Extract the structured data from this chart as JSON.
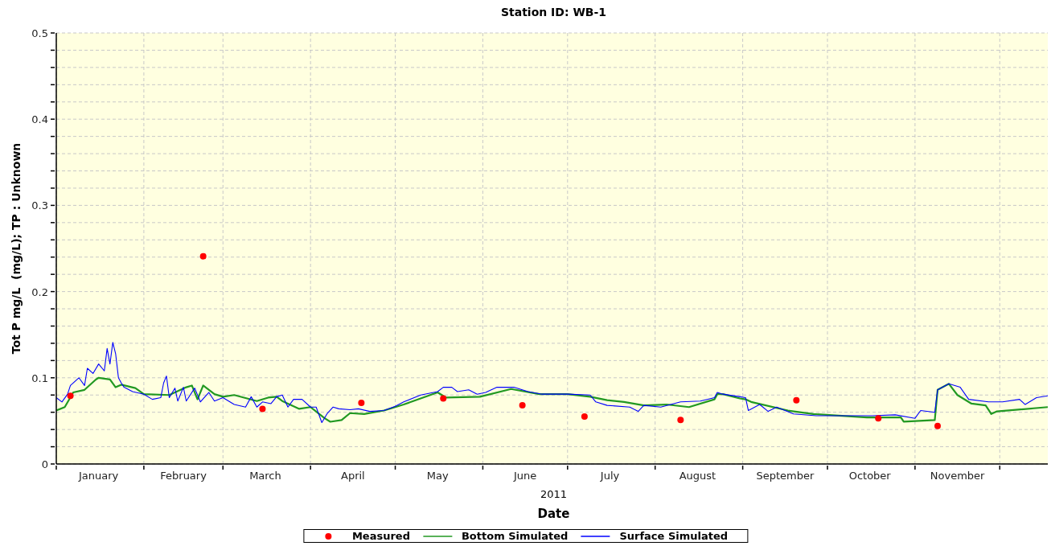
{
  "chart_data": {
    "type": "line",
    "title": "Station ID: WB-1",
    "xlabel": "Date",
    "ylabel": "Tot P mg/L  (mg/L); TP : Unknown",
    "annotations": [
      "2011"
    ],
    "xlim": [
      "2011-01-01",
      "2011-12-18"
    ],
    "xticks": [
      {
        "value": "2011-01-01",
        "label": null
      },
      {
        "value": "2011-01-16",
        "label": "January"
      },
      {
        "value": "2011-02-01",
        "label": null
      },
      {
        "value": "2011-02-15",
        "label": "February"
      },
      {
        "value": "2011-03-01",
        "label": null
      },
      {
        "value": "2011-03-16",
        "label": "March"
      },
      {
        "value": "2011-04-01",
        "label": null
      },
      {
        "value": "2011-04-16",
        "label": "April"
      },
      {
        "value": "2011-05-01",
        "label": null
      },
      {
        "value": "2011-05-16",
        "label": "May"
      },
      {
        "value": "2011-06-01",
        "label": null
      },
      {
        "value": "2011-06-16",
        "label": "June"
      },
      {
        "value": "2011-07-01",
        "label": null
      },
      {
        "value": "2011-07-16",
        "label": "July"
      },
      {
        "value": "2011-08-01",
        "label": null
      },
      {
        "value": "2011-08-16",
        "label": "August"
      },
      {
        "value": "2011-09-01",
        "label": null
      },
      {
        "value": "2011-09-16",
        "label": "September"
      },
      {
        "value": "2011-10-01",
        "label": null
      },
      {
        "value": "2011-10-16",
        "label": "October"
      },
      {
        "value": "2011-11-01",
        "label": null
      },
      {
        "value": "2011-11-16",
        "label": "November"
      },
      {
        "value": "2011-12-01",
        "label": null
      }
    ],
    "ylim": [
      0,
      0.5
    ],
    "yticks": [
      0,
      {
        "value": 0.02,
        "label": null
      },
      {
        "value": 0.04,
        "label": null
      },
      {
        "value": 0.06,
        "label": null
      },
      {
        "value": 0.08,
        "label": null
      },
      0.1,
      {
        "value": 0.12,
        "label": null
      },
      {
        "value": 0.14,
        "label": null
      },
      {
        "value": 0.16,
        "label": null
      },
      {
        "value": 0.18,
        "label": null
      },
      0.2,
      {
        "value": 0.22,
        "label": null
      },
      {
        "value": 0.24,
        "label": null
      },
      {
        "value": 0.26,
        "label": null
      },
      {
        "value": 0.28,
        "label": null
      },
      0.3,
      {
        "value": 0.32,
        "label": null
      },
      {
        "value": 0.34,
        "label": null
      },
      {
        "value": 0.36,
        "label": null
      },
      {
        "value": 0.38,
        "label": null
      },
      0.4,
      {
        "value": 0.42,
        "label": null
      },
      {
        "value": 0.44,
        "label": null
      },
      {
        "value": 0.46,
        "label": null
      },
      {
        "value": 0.48,
        "label": null
      },
      0.5
    ],
    "grid": true,
    "legend": "bottom",
    "series": [
      {
        "name": "Measured",
        "type": "scatter",
        "marker": "circle",
        "color": "#ff0000",
        "x": [
          "2011-01-06",
          "2011-02-22",
          "2011-03-15",
          "2011-04-19",
          "2011-05-18",
          "2011-06-15",
          "2011-07-07",
          "2011-08-10",
          "2011-09-20",
          "2011-10-19",
          "2011-11-09"
        ],
        "values": [
          0.079,
          0.241,
          0.064,
          0.071,
          0.076,
          0.068,
          0.055,
          0.051,
          0.074,
          0.053,
          0.044
        ]
      },
      {
        "name": "Bottom Simulated",
        "color": "#229922",
        "x": [
          "2011-01-01",
          "2011-01-04",
          "2011-01-07",
          "2011-01-11",
          "2011-01-15",
          "2011-01-16",
          "2011-01-20",
          "2011-01-22",
          "2011-01-24",
          "2011-01-29",
          "2011-02-01",
          "2011-02-10",
          "2011-02-16",
          "2011-02-18",
          "2011-02-20",
          "2011-02-22",
          "2011-02-26",
          "2011-03-01",
          "2011-03-05",
          "2011-03-13",
          "2011-03-17",
          "2011-03-20",
          "2011-03-22",
          "2011-03-28",
          "2011-04-01",
          "2011-04-06",
          "2011-04-08",
          "2011-04-12",
          "2011-04-15",
          "2011-04-20",
          "2011-04-27",
          "2011-05-01",
          "2011-05-04",
          "2011-05-16",
          "2011-05-19",
          "2011-05-31",
          "2011-06-11",
          "2011-06-21",
          "2011-07-01",
          "2011-07-09",
          "2011-07-15",
          "2011-07-21",
          "2011-07-28",
          "2011-08-05",
          "2011-08-13",
          "2011-08-22",
          "2011-08-23",
          "2011-08-25",
          "2011-08-31",
          "2011-09-02",
          "2011-09-04",
          "2011-09-17",
          "2011-09-26",
          "2011-10-15",
          "2011-10-27",
          "2011-10-28",
          "2011-11-08",
          "2011-11-09",
          "2011-11-13",
          "2011-11-16",
          "2011-11-21",
          "2011-11-26",
          "2011-11-28",
          "2011-11-30",
          "2011-12-18"
        ],
        "values": [
          0.062,
          0.066,
          0.083,
          0.086,
          0.098,
          0.1,
          0.098,
          0.089,
          0.092,
          0.088,
          0.081,
          0.08,
          0.089,
          0.091,
          0.075,
          0.091,
          0.081,
          0.078,
          0.08,
          0.073,
          0.077,
          0.078,
          0.073,
          0.064,
          0.066,
          0.053,
          0.049,
          0.051,
          0.059,
          0.058,
          0.062,
          0.066,
          0.069,
          0.083,
          0.077,
          0.078,
          0.087,
          0.081,
          0.081,
          0.078,
          0.074,
          0.072,
          0.068,
          0.069,
          0.066,
          0.075,
          0.081,
          0.081,
          0.076,
          0.075,
          0.072,
          0.062,
          0.058,
          0.054,
          0.054,
          0.049,
          0.051,
          0.086,
          0.093,
          0.08,
          0.07,
          0.068,
          0.058,
          0.061,
          0.066
        ]
      },
      {
        "name": "Surface Simulated",
        "color": "#0000ff",
        "x": [
          "2011-01-01",
          "2011-01-03",
          "2011-01-05",
          "2011-01-06",
          "2011-01-09",
          "2011-01-11",
          "2011-01-12",
          "2011-01-14",
          "2011-01-16",
          "2011-01-18",
          "2011-01-19",
          "2011-01-20",
          "2011-01-21",
          "2011-01-22",
          "2011-01-23",
          "2011-01-24",
          "2011-01-25",
          "2011-01-28",
          "2011-02-01",
          "2011-02-04",
          "2011-02-07",
          "2011-02-08",
          "2011-02-09",
          "2011-02-10",
          "2011-02-12",
          "2011-02-13",
          "2011-02-15",
          "2011-02-16",
          "2011-02-19",
          "2011-02-21",
          "2011-02-24",
          "2011-02-26",
          "2011-03-01",
          "2011-03-05",
          "2011-03-09",
          "2011-03-11",
          "2011-03-13",
          "2011-03-15",
          "2011-03-18",
          "2011-03-20",
          "2011-03-22",
          "2011-03-24",
          "2011-03-26",
          "2011-03-29",
          "2011-04-01",
          "2011-04-03",
          "2011-04-05",
          "2011-04-07",
          "2011-04-09",
          "2011-04-11",
          "2011-04-15",
          "2011-04-18",
          "2011-04-22",
          "2011-04-27",
          "2011-05-01",
          "2011-05-04",
          "2011-05-10",
          "2011-05-16",
          "2011-05-18",
          "2011-05-21",
          "2011-05-23",
          "2011-05-27",
          "2011-05-30",
          "2011-06-02",
          "2011-06-06",
          "2011-06-12",
          "2011-06-17",
          "2011-06-22",
          "2011-07-01",
          "2011-07-09",
          "2011-07-11",
          "2011-07-15",
          "2011-07-23",
          "2011-07-26",
          "2011-07-28",
          "2011-08-03",
          "2011-08-10",
          "2011-08-17",
          "2011-08-22",
          "2011-08-23",
          "2011-08-25",
          "2011-08-31",
          "2011-09-02",
          "2011-09-03",
          "2011-09-07",
          "2011-09-10",
          "2011-09-13",
          "2011-09-19",
          "2011-09-27",
          "2011-10-06",
          "2011-10-17",
          "2011-10-25",
          "2011-11-01",
          "2011-11-03",
          "2011-11-08",
          "2011-11-09",
          "2011-11-13",
          "2011-11-17",
          "2011-11-20",
          "2011-11-27",
          "2011-12-02",
          "2011-12-08",
          "2011-12-10",
          "2011-12-14",
          "2011-12-18"
        ],
        "values": [
          0.077,
          0.072,
          0.081,
          0.091,
          0.1,
          0.091,
          0.111,
          0.105,
          0.116,
          0.108,
          0.134,
          0.116,
          0.141,
          0.128,
          0.1,
          0.094,
          0.089,
          0.084,
          0.081,
          0.075,
          0.077,
          0.094,
          0.102,
          0.077,
          0.088,
          0.073,
          0.089,
          0.073,
          0.088,
          0.072,
          0.083,
          0.073,
          0.077,
          0.069,
          0.066,
          0.078,
          0.066,
          0.072,
          0.07,
          0.078,
          0.08,
          0.066,
          0.075,
          0.075,
          0.066,
          0.066,
          0.048,
          0.059,
          0.066,
          0.064,
          0.063,
          0.064,
          0.061,
          0.062,
          0.067,
          0.072,
          0.08,
          0.084,
          0.089,
          0.089,
          0.084,
          0.086,
          0.081,
          0.083,
          0.089,
          0.089,
          0.084,
          0.081,
          0.081,
          0.08,
          0.072,
          0.068,
          0.066,
          0.061,
          0.068,
          0.066,
          0.072,
          0.073,
          0.077,
          0.083,
          0.081,
          0.078,
          0.077,
          0.062,
          0.069,
          0.061,
          0.066,
          0.058,
          0.056,
          0.056,
          0.056,
          0.057,
          0.053,
          0.062,
          0.06,
          0.086,
          0.093,
          0.089,
          0.075,
          0.072,
          0.072,
          0.075,
          0.069,
          0.077,
          0.079
        ]
      }
    ]
  }
}
